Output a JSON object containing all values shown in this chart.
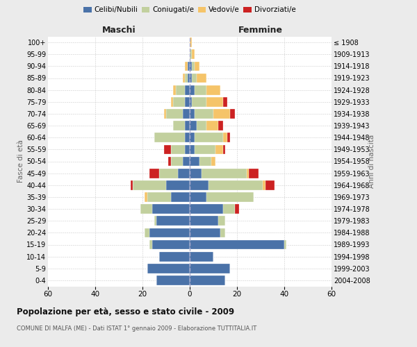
{
  "age_groups": [
    "0-4",
    "5-9",
    "10-14",
    "15-19",
    "20-24",
    "25-29",
    "30-34",
    "35-39",
    "40-44",
    "45-49",
    "50-54",
    "55-59",
    "60-64",
    "65-69",
    "70-74",
    "75-79",
    "80-84",
    "85-89",
    "90-94",
    "95-99",
    "100+"
  ],
  "birth_years": [
    "2004-2008",
    "1999-2003",
    "1994-1998",
    "1989-1993",
    "1984-1988",
    "1979-1983",
    "1974-1978",
    "1969-1973",
    "1964-1968",
    "1959-1963",
    "1954-1958",
    "1949-1953",
    "1944-1948",
    "1939-1943",
    "1934-1938",
    "1929-1933",
    "1924-1928",
    "1919-1923",
    "1914-1918",
    "1909-1913",
    "≤ 1908"
  ],
  "colors": {
    "celibi": "#4A72A8",
    "coniugati": "#C2D09E",
    "vedovi": "#F5C469",
    "divorziati": "#CC2222"
  },
  "maschi": {
    "celibi": [
      14,
      18,
      13,
      16,
      17,
      14,
      16,
      8,
      10,
      5,
      3,
      2,
      2,
      2,
      3,
      2,
      2,
      1,
      1,
      0,
      0
    ],
    "coniugati": [
      0,
      0,
      0,
      1,
      2,
      1,
      5,
      10,
      14,
      8,
      5,
      6,
      13,
      5,
      7,
      5,
      4,
      1,
      0,
      0,
      0
    ],
    "vedovi": [
      0,
      0,
      0,
      0,
      0,
      0,
      0,
      1,
      0,
      0,
      0,
      0,
      0,
      0,
      1,
      1,
      1,
      1,
      1,
      0,
      0
    ],
    "divorziati": [
      0,
      0,
      0,
      0,
      0,
      0,
      0,
      0,
      1,
      4,
      1,
      3,
      0,
      0,
      0,
      0,
      0,
      0,
      0,
      0,
      0
    ]
  },
  "femmine": {
    "celibi": [
      15,
      17,
      10,
      40,
      13,
      12,
      14,
      7,
      8,
      5,
      4,
      2,
      2,
      3,
      2,
      1,
      2,
      1,
      1,
      0,
      0
    ],
    "coniugati": [
      0,
      0,
      0,
      1,
      2,
      3,
      5,
      20,
      23,
      19,
      5,
      9,
      12,
      4,
      8,
      6,
      5,
      2,
      1,
      1,
      0
    ],
    "vedovi": [
      0,
      0,
      0,
      0,
      0,
      0,
      0,
      0,
      1,
      1,
      2,
      3,
      2,
      5,
      7,
      7,
      6,
      4,
      2,
      1,
      1
    ],
    "divorziati": [
      0,
      0,
      0,
      0,
      0,
      0,
      2,
      0,
      4,
      4,
      0,
      1,
      1,
      2,
      2,
      2,
      0,
      0,
      0,
      0,
      0
    ]
  },
  "xlim": 60,
  "title": "Popolazione per età, sesso e stato civile - 2009",
  "subtitle": "COMUNE DI MALFA (ME) - Dati ISTAT 1° gennaio 2009 - Elaborazione TUTTITALIA.IT",
  "ylabel_left": "Fasce di età",
  "ylabel_right": "Anni di nascita",
  "xlabel_maschi": "Maschi",
  "xlabel_femmine": "Femmine",
  "legend_labels": [
    "Celibi/Nubili",
    "Coniugati/e",
    "Vedovi/e",
    "Divorziati/e"
  ],
  "bg_color": "#ebebeb",
  "plot_bg": "#ffffff",
  "grid_color": "#cccccc"
}
